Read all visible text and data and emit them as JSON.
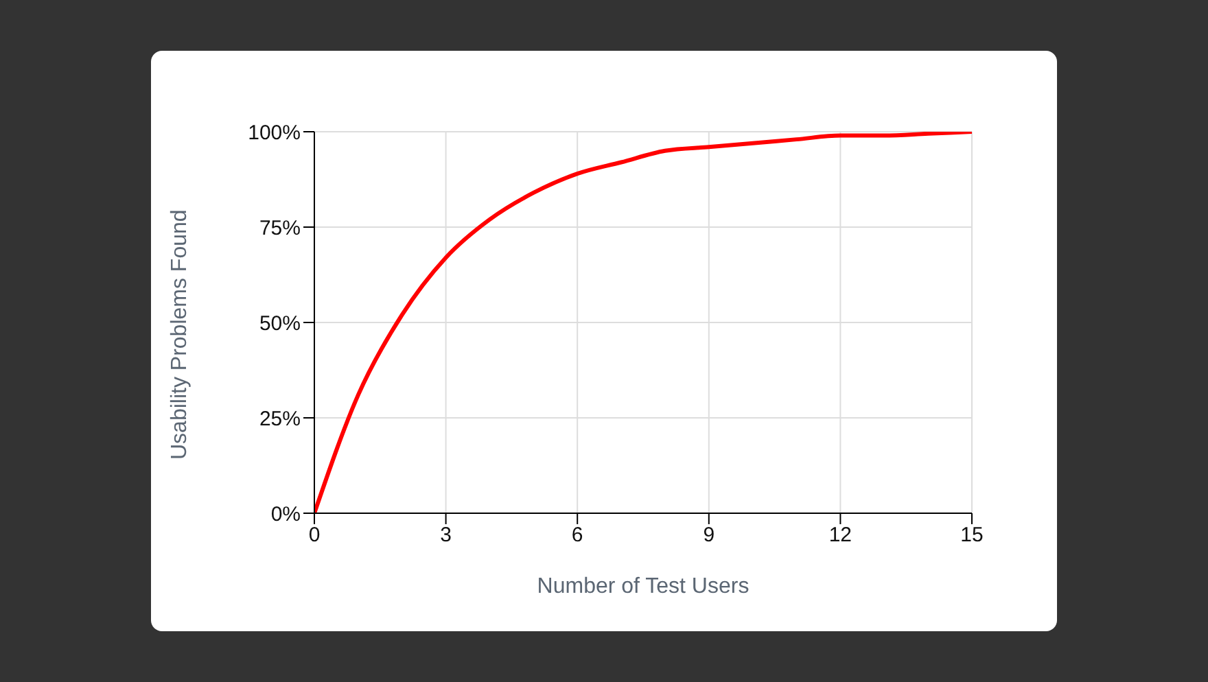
{
  "chart_data": {
    "type": "line",
    "xlabel": "Number of Test Users",
    "ylabel": "Usability Problems Found",
    "x": [
      0,
      1,
      2,
      3,
      4,
      5,
      6,
      7,
      8,
      9,
      10,
      11,
      12,
      13,
      14,
      15
    ],
    "series": [
      {
        "color": "#ff0000",
        "values": [
          0,
          31,
          52,
          67,
          77,
          84,
          89,
          92,
          95,
          96,
          97,
          98,
          99,
          99,
          99.5,
          100
        ]
      }
    ],
    "xlim": [
      0,
      15
    ],
    "xticks": [
      0,
      3,
      6,
      9,
      12,
      15
    ],
    "ylim": [
      0,
      100
    ],
    "yticks": [
      {
        "value": 0,
        "label": "0%"
      },
      {
        "value": 25,
        "label": "25%"
      },
      {
        "value": 50,
        "label": "50%"
      },
      {
        "value": 75,
        "label": "75%"
      },
      {
        "value": 100,
        "label": "100%"
      }
    ],
    "grid": true,
    "marker": "none",
    "line_style": "solid"
  }
}
